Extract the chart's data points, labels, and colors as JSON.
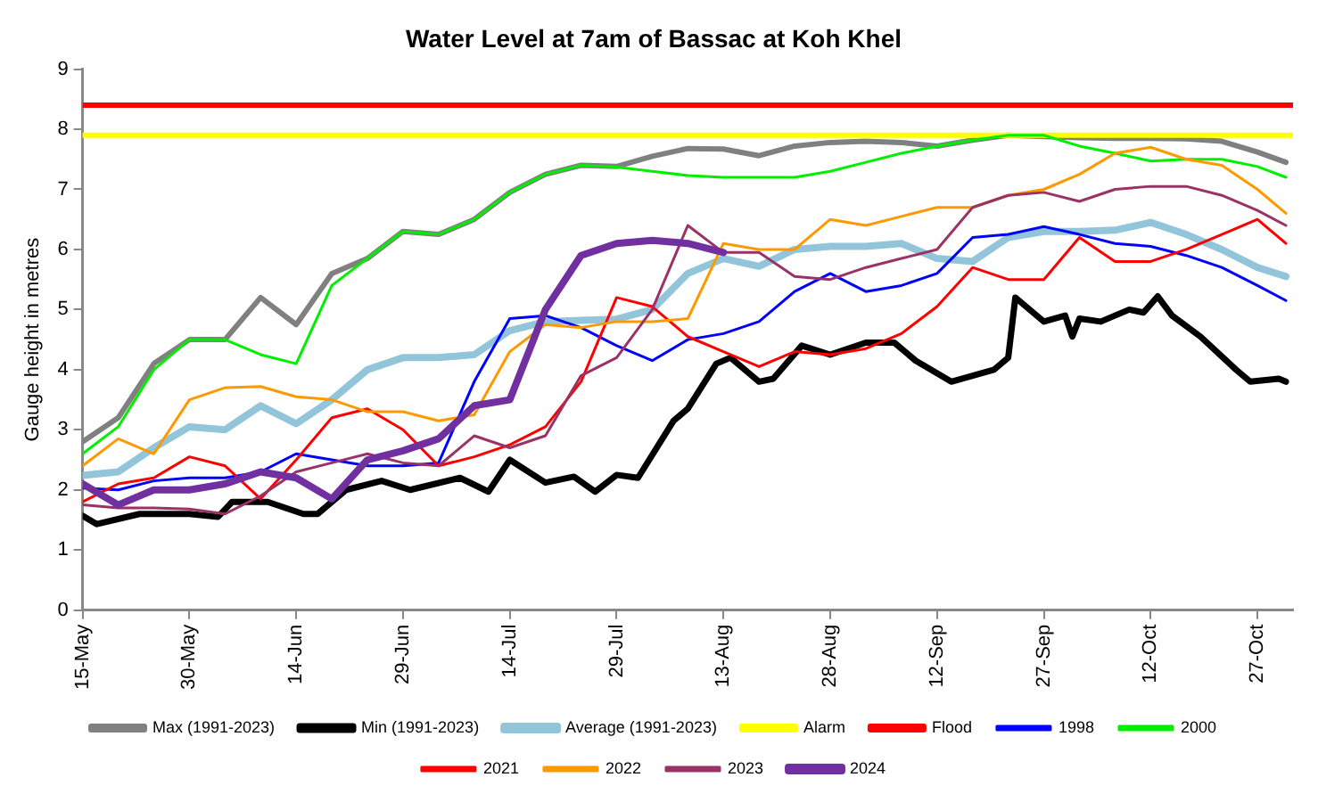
{
  "chart_data": {
    "type": "line",
    "title": "Water Level at 7am of Bassac at Koh Khel",
    "ylabel": "Gauge height in metres",
    "x": [
      "--05-15",
      "--05-20",
      "--05-25",
      "--05-30",
      "--06-04",
      "--06-09",
      "--06-14",
      "--06-19",
      "--06-24",
      "--06-29",
      "--07-04",
      "--07-09",
      "--07-14",
      "--07-19",
      "--07-24",
      "--07-29",
      "--08-03",
      "--08-08",
      "--08-13",
      "--08-18",
      "--08-23",
      "--08-28",
      "--09-02",
      "--09-07",
      "--09-12",
      "--09-17",
      "--09-22",
      "--09-27",
      "--10-02",
      "--10-07",
      "--10-12",
      "--10-17",
      "--10-22",
      "--10-27",
      "--10-31"
    ],
    "xlim": [
      "--05-15",
      "--11-01"
    ],
    "xticks": [
      {
        "value": "--05-15",
        "label": "15-May"
      },
      {
        "value": "--05-30",
        "label": "30-May"
      },
      {
        "value": "--06-14",
        "label": "14-Jun"
      },
      {
        "value": "--06-29",
        "label": "29-Jun"
      },
      {
        "value": "--07-14",
        "label": "14-Jul"
      },
      {
        "value": "--07-29",
        "label": "29-Jul"
      },
      {
        "value": "--08-13",
        "label": "13-Aug"
      },
      {
        "value": "--08-28",
        "label": "28-Aug"
      },
      {
        "value": "--09-12",
        "label": "12-Sep"
      },
      {
        "value": "--09-27",
        "label": "27-Sep"
      },
      {
        "value": "--10-12",
        "label": "12-Oct"
      },
      {
        "value": "--10-27",
        "label": "27-Oct"
      }
    ],
    "ylim": [
      0,
      9
    ],
    "yticks": [
      0,
      1,
      2,
      3,
      4,
      5,
      6,
      7,
      8,
      9
    ],
    "grid": false,
    "legend": "bottom",
    "marker": "none",
    "line_style": "solid",
    "series": [
      {
        "name": "Max (1991-2023)",
        "color": "#808080",
        "values": [
          2.8,
          3.2,
          4.1,
          4.5,
          4.5,
          5.2,
          4.75,
          5.6,
          5.85,
          6.3,
          6.25,
          6.5,
          6.95,
          7.25,
          7.4,
          7.38,
          7.55,
          7.68,
          7.67,
          7.56,
          7.72,
          7.78,
          7.8,
          7.78,
          7.72,
          7.82,
          7.9,
          7.88,
          7.86,
          7.85,
          7.85,
          7.84,
          7.8,
          7.62,
          7.45
        ]
      },
      {
        "name": "Min (1991-2023)",
        "color": "#000000",
        "x": [
          "--05-15",
          "--05-17",
          "--05-23",
          "--05-30",
          "--06-03",
          "--06-05",
          "--06-10",
          "--06-15",
          "--06-17",
          "--06-21",
          "--06-26",
          "--06-30",
          "--07-07",
          "--07-11",
          "--07-14",
          "--07-19",
          "--07-23",
          "--07-26",
          "--07-29",
          "--08-01",
          "--08-06",
          "--08-08",
          "--08-12",
          "--08-14",
          "--08-18",
          "--08-20",
          "--08-24",
          "--08-28",
          "--09-02",
          "--09-06",
          "--09-09",
          "--09-14",
          "--09-20",
          "--09-22",
          "--09-23",
          "--09-27",
          "--09-30",
          "--10-01",
          "--10-02",
          "--10-05",
          "--10-09",
          "--10-11",
          "--10-13",
          "--10-15",
          "--10-19",
          "--10-24",
          "--10-26",
          "--10-30",
          "--10-31"
        ],
        "values": [
          1.57,
          1.43,
          1.6,
          1.6,
          1.55,
          1.8,
          1.8,
          1.6,
          1.6,
          2.0,
          2.15,
          2.0,
          2.2,
          1.97,
          2.5,
          2.12,
          2.22,
          1.97,
          2.25,
          2.2,
          3.15,
          3.35,
          4.1,
          4.2,
          3.8,
          3.85,
          4.4,
          4.25,
          4.45,
          4.45,
          4.15,
          3.8,
          4.0,
          4.2,
          5.2,
          4.8,
          4.9,
          4.55,
          4.85,
          4.8,
          5.0,
          4.95,
          5.22,
          4.9,
          4.55,
          4.0,
          3.8,
          3.85,
          3.8
        ]
      },
      {
        "name": "Average (1991-2023)",
        "color": "#92c5d9",
        "values": [
          2.24,
          2.3,
          2.7,
          3.05,
          3.0,
          3.4,
          3.1,
          3.5,
          4.0,
          4.2,
          4.2,
          4.25,
          4.65,
          4.8,
          4.82,
          4.84,
          5.0,
          5.6,
          5.85,
          5.72,
          6.0,
          6.05,
          6.05,
          6.1,
          5.85,
          5.8,
          6.2,
          6.3,
          6.3,
          6.32,
          6.45,
          6.25,
          6.0,
          5.7,
          5.55
        ]
      },
      {
        "name": "Alarm",
        "color": "#ffff00",
        "x": [
          "--05-15",
          "--11-01"
        ],
        "values": [
          7.9,
          7.9
        ]
      },
      {
        "name": "Flood",
        "color": "#ff0000",
        "x": [
          "--05-15",
          "--11-01"
        ],
        "values": [
          8.4,
          8.4
        ]
      },
      {
        "name": "1998",
        "color": "#0000ff",
        "values": [
          2.03,
          2.0,
          2.15,
          2.2,
          2.2,
          2.3,
          2.6,
          2.5,
          2.4,
          2.4,
          2.45,
          3.8,
          4.85,
          4.9,
          4.7,
          4.4,
          4.15,
          4.5,
          4.6,
          4.8,
          5.3,
          5.6,
          5.3,
          5.4,
          5.6,
          6.2,
          6.25,
          6.38,
          6.25,
          6.1,
          6.05,
          5.9,
          5.7,
          5.4,
          5.15
        ]
      },
      {
        "name": "2000",
        "color": "#00ee00",
        "values": [
          2.6,
          3.05,
          4.0,
          4.5,
          4.5,
          4.25,
          4.1,
          5.4,
          5.85,
          6.3,
          6.25,
          6.5,
          6.95,
          7.25,
          7.4,
          7.37,
          7.3,
          7.23,
          7.2,
          7.2,
          7.2,
          7.3,
          7.45,
          7.6,
          7.72,
          7.82,
          7.9,
          7.9,
          7.72,
          7.6,
          7.47,
          7.5,
          7.5,
          7.38,
          7.2
        ]
      },
      {
        "name": "2021",
        "color": "#ff0000",
        "values": [
          1.8,
          2.1,
          2.2,
          2.55,
          2.4,
          1.85,
          2.5,
          3.2,
          3.35,
          3.0,
          2.4,
          2.55,
          2.75,
          3.05,
          3.8,
          5.2,
          5.05,
          4.55,
          4.3,
          4.05,
          4.3,
          4.25,
          4.35,
          4.6,
          5.05,
          5.7,
          5.5,
          5.5,
          6.2,
          5.8,
          5.8,
          6.0,
          6.25,
          6.5,
          6.1
        ]
      },
      {
        "name": "2022",
        "color": "#ff9900",
        "values": [
          2.4,
          2.85,
          2.6,
          3.5,
          3.7,
          3.72,
          3.55,
          3.5,
          3.3,
          3.3,
          3.15,
          3.25,
          4.3,
          4.75,
          4.7,
          4.8,
          4.8,
          4.85,
          6.1,
          6.0,
          6.0,
          6.5,
          6.4,
          6.55,
          6.7,
          6.7,
          6.9,
          7.0,
          7.25,
          7.6,
          7.7,
          7.5,
          7.4,
          7.0,
          6.6
        ]
      },
      {
        "name": "2023",
        "color": "#993366",
        "values": [
          1.75,
          1.7,
          1.7,
          1.68,
          1.6,
          1.9,
          2.3,
          2.45,
          2.6,
          2.45,
          2.4,
          2.9,
          2.7,
          2.9,
          3.9,
          4.2,
          5.0,
          6.4,
          5.95,
          5.95,
          5.55,
          5.5,
          5.7,
          5.85,
          6.0,
          6.7,
          6.9,
          6.95,
          6.8,
          7.0,
          7.05,
          7.05,
          6.9,
          6.65,
          6.4
        ]
      },
      {
        "name": "2024",
        "color": "#7030a0",
        "values": [
          2.1,
          1.75,
          2.0,
          2.0,
          2.1,
          2.3,
          2.2,
          1.85,
          2.5,
          2.65,
          2.85,
          3.4,
          3.5,
          5.0,
          5.9,
          6.1,
          6.15,
          6.1,
          5.95,
          null,
          null,
          null,
          null,
          null,
          null,
          null,
          null,
          null,
          null,
          null,
          null,
          null,
          null,
          null,
          null
        ]
      }
    ]
  }
}
